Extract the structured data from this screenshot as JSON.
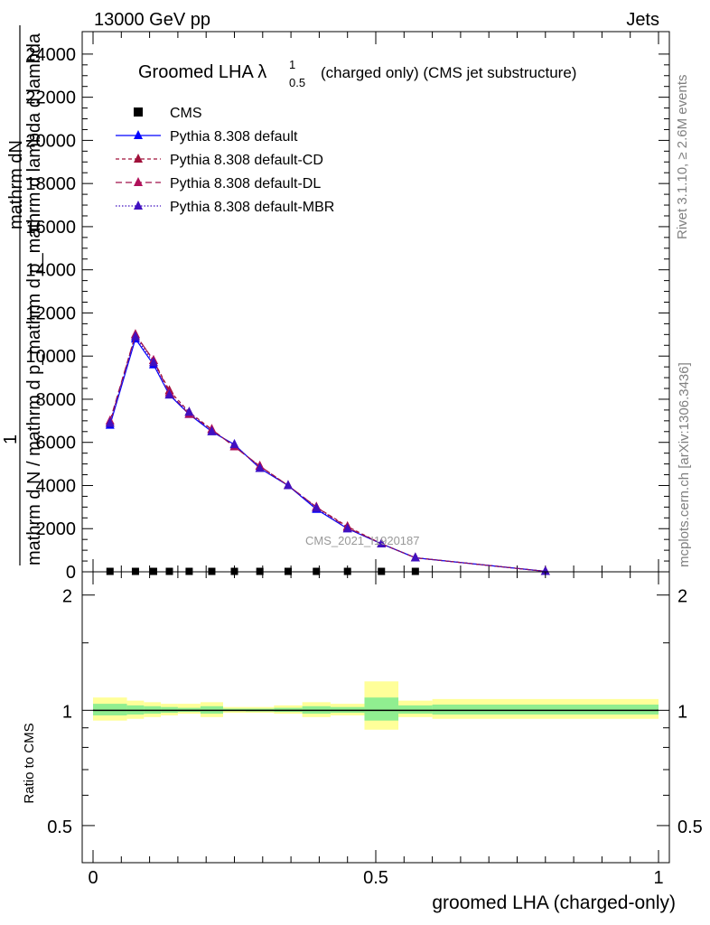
{
  "header": {
    "left": "13000 GeV pp",
    "right": "Jets"
  },
  "side": {
    "rivet": "Rivet 3.1.10, ≥ 2.6M events",
    "mcplots": "mcplots.cern.ch [arXiv:1306.3436]"
  },
  "watermark": "CMS_2021_I1920187",
  "chart_data": [
    {
      "type": "line",
      "title_main": "Groomed LHA λ",
      "title_sup": "1",
      "title_sub": "0.5",
      "title_rest": "(charged only) (CMS jet substructure)",
      "ylabel_lines": [
        "mathrm dN",
        "1",
        "mathrm d N / mathrm d p_mathrm d p_mathrm d lambda d lambda"
      ],
      "ylabel_sub_t": "T",
      "xlim": [
        0,
        1
      ],
      "ylim": [
        0,
        25000
      ],
      "yticks": [
        {
          "v": 0,
          "label": "0"
        },
        {
          "v": 2000,
          "label": "2000"
        },
        {
          "v": 4000,
          "label": "4000"
        },
        {
          "v": 6000,
          "label": "6000"
        },
        {
          "v": 8000,
          "label": "8000"
        },
        {
          "v": 10000,
          "label": "10000"
        },
        {
          "v": 12000,
          "label": "12000"
        },
        {
          "v": 14000,
          "label": "14000"
        },
        {
          "v": 16000,
          "label": "16000"
        },
        {
          "v": 18000,
          "label": "18000"
        },
        {
          "v": 20000,
          "label": "20000"
        },
        {
          "v": 22000,
          "label": "22000"
        },
        {
          "v": 24000,
          "label": "24000"
        }
      ],
      "cms_points": {
        "name": "CMS",
        "x": [
          0.03,
          0.075,
          0.107,
          0.135,
          0.17,
          0.21,
          0.25,
          0.295,
          0.345,
          0.395,
          0.45,
          0.51,
          0.57
        ],
        "y": [
          20,
          20,
          20,
          20,
          20,
          20,
          20,
          20,
          20,
          20,
          20,
          20,
          20
        ]
      },
      "series": [
        {
          "name": "Pythia 8.308 default",
          "color": "#0000ff",
          "dash": "",
          "marker": "#0000ff",
          "x": [
            0.03,
            0.075,
            0.107,
            0.135,
            0.17,
            0.21,
            0.25,
            0.295,
            0.345,
            0.395,
            0.45,
            0.51,
            0.57,
            0.8
          ],
          "y": [
            6800,
            10800,
            9600,
            8200,
            7300,
            6500,
            5900,
            4800,
            4000,
            2900,
            2000,
            1300,
            650,
            20
          ]
        },
        {
          "name": "Pythia 8.308 default-CD",
          "color": "#a0103a",
          "dash": "4,3",
          "marker": "#a0103a",
          "x": [
            0.03,
            0.075,
            0.107,
            0.135,
            0.17,
            0.21,
            0.25,
            0.295,
            0.345,
            0.395,
            0.45,
            0.51,
            0.57,
            0.8
          ],
          "y": [
            6900,
            11000,
            9800,
            8400,
            7400,
            6600,
            5800,
            4900,
            4000,
            3000,
            2100,
            1300,
            650,
            20
          ]
        },
        {
          "name": "Pythia 8.308 default-DL",
          "color": "#a0104a",
          "dash": "7,4",
          "marker": "#b0105a",
          "x": [
            0.03,
            0.075,
            0.107,
            0.135,
            0.17,
            0.21,
            0.25,
            0.295,
            0.345,
            0.395,
            0.45,
            0.51,
            0.57,
            0.8
          ],
          "y": [
            7000,
            11000,
            9800,
            8300,
            7300,
            6600,
            5800,
            4900,
            4000,
            3000,
            2050,
            1300,
            650,
            20
          ]
        },
        {
          "name": "Pythia 8.308 default-MBR",
          "color": "#4010c0",
          "dash": "1.5,2",
          "marker": "#4010c0",
          "x": [
            0.03,
            0.075,
            0.107,
            0.135,
            0.17,
            0.21,
            0.25,
            0.295,
            0.345,
            0.395,
            0.45,
            0.51,
            0.57,
            0.8
          ],
          "y": [
            6900,
            10900,
            9700,
            8200,
            7400,
            6500,
            5900,
            4800,
            4000,
            2950,
            2000,
            1300,
            650,
            20
          ]
        }
      ]
    },
    {
      "type": "area",
      "ylabel": "Ratio to CMS",
      "xlabel": "groomed LHA (charged-only)",
      "xlim": [
        0,
        1
      ],
      "ylim": [
        0.4,
        2.3
      ],
      "log_y": true,
      "yticks": [
        {
          "v": 0.5,
          "label": "0.5"
        },
        {
          "v": 1,
          "label": "1"
        },
        {
          "v": 2,
          "label": "2"
        }
      ],
      "xticks": [
        {
          "v": 0,
          "label": "0"
        },
        {
          "v": 0.5,
          "label": "0.5"
        },
        {
          "v": 1,
          "label": "1"
        }
      ],
      "bins": [
        0,
        0.06,
        0.09,
        0.12,
        0.15,
        0.19,
        0.23,
        0.27,
        0.32,
        0.37,
        0.42,
        0.48,
        0.54,
        0.6,
        1.0
      ],
      "band_yellow": [
        [
          0.94,
          1.08
        ],
        [
          0.95,
          1.06
        ],
        [
          0.96,
          1.05
        ],
        [
          0.97,
          1.04
        ],
        [
          0.98,
          1.04
        ],
        [
          0.96,
          1.05
        ],
        [
          0.985,
          1.02
        ],
        [
          0.985,
          1.02
        ],
        [
          0.98,
          1.03
        ],
        [
          0.96,
          1.05
        ],
        [
          0.97,
          1.04
        ],
        [
          0.89,
          1.19
        ],
        [
          0.96,
          1.06
        ],
        [
          0.95,
          1.07
        ]
      ],
      "band_green": [
        [
          0.97,
          1.04
        ],
        [
          0.975,
          1.03
        ],
        [
          0.98,
          1.025
        ],
        [
          0.985,
          1.02
        ],
        [
          0.99,
          1.015
        ],
        [
          0.98,
          1.025
        ],
        [
          0.995,
          1.01
        ],
        [
          0.993,
          1.01
        ],
        [
          0.99,
          1.015
        ],
        [
          0.98,
          1.025
        ],
        [
          0.985,
          1.02
        ],
        [
          0.94,
          1.08
        ],
        [
          0.98,
          1.03
        ],
        [
          0.975,
          1.035
        ]
      ]
    }
  ]
}
